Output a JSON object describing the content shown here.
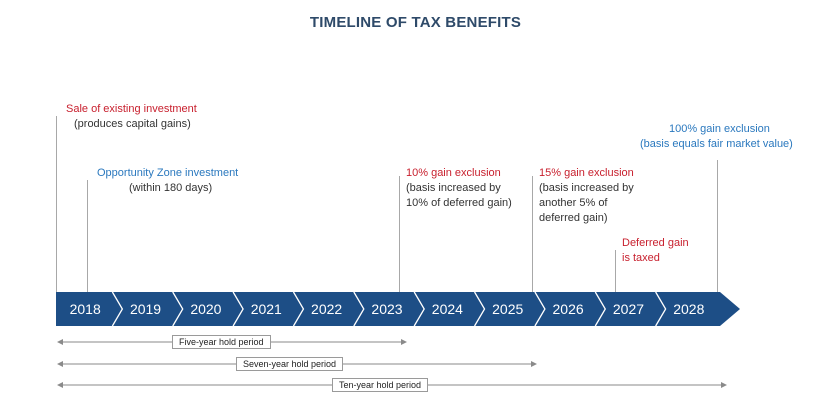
{
  "title": "TIMELINE OF TAX BENEFITS",
  "years": [
    "2018",
    "2019",
    "2020",
    "2021",
    "2022",
    "2023",
    "2024",
    "2025",
    "2026",
    "2027",
    "2028"
  ],
  "annotations": {
    "sale": {
      "head": "Sale of existing investment",
      "sub": "(produces capital gains)"
    },
    "oz": {
      "head": "Opportunity Zone investment",
      "sub": "(within 180 days)"
    },
    "ten_pct": {
      "head": "10% gain exclusion",
      "sub1": "(basis increased by",
      "sub2": "10% of deferred gain)"
    },
    "fifteen_pct": {
      "head": "15% gain exclusion",
      "sub1": "(basis increased by",
      "sub2": "another 5% of",
      "sub3": "deferred gain)"
    },
    "deferred": {
      "head1": "Deferred gain",
      "head2": "is taxed"
    },
    "hundred_pct": {
      "head": "100% gain exclusion",
      "sub": "(basis equals fair market value)"
    }
  },
  "hold_periods": {
    "five": "Five-year hold period",
    "seven": "Seven-year hold period",
    "ten": "Ten-year hold period"
  },
  "colors": {
    "band": "#1d4e86",
    "title": "#2e4a69",
    "red_text": "#c8202e",
    "blue_text": "#2a78be"
  }
}
